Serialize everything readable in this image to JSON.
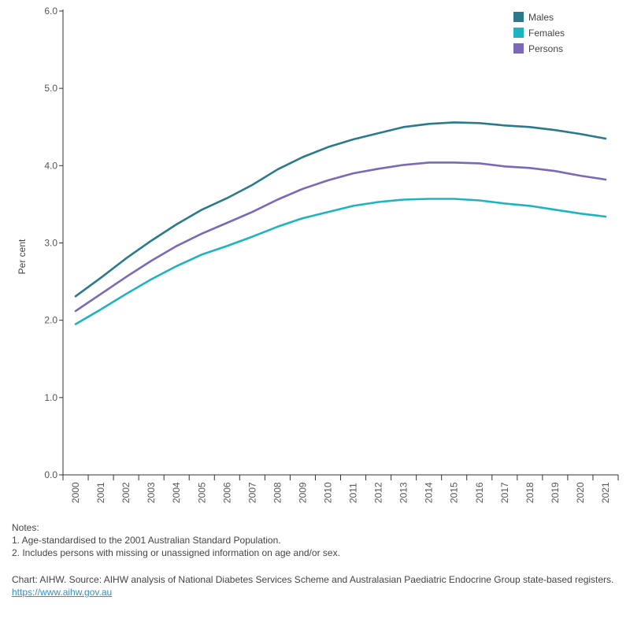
{
  "chart_data": {
    "type": "line",
    "ylabel": "Per cent",
    "xlabel": "",
    "ylim": [
      0,
      6
    ],
    "yticks": [
      "0.0",
      "1.0",
      "2.0",
      "3.0",
      "4.0",
      "5.0",
      "6.0"
    ],
    "x": [
      "2000",
      "2001",
      "2002",
      "2003",
      "2004",
      "2005",
      "2006",
      "2007",
      "2008",
      "2009",
      "2010",
      "2011",
      "2012",
      "2013",
      "2014",
      "2015",
      "2016",
      "2017",
      "2018",
      "2019",
      "2020",
      "2021"
    ],
    "series": [
      {
        "name": "Males",
        "color": "#2a7a8c",
        "values": [
          2.31,
          2.55,
          2.8,
          3.03,
          3.24,
          3.43,
          3.58,
          3.75,
          3.95,
          4.11,
          4.24,
          4.34,
          4.42,
          4.5,
          4.54,
          4.56,
          4.55,
          4.52,
          4.5,
          4.46,
          4.41,
          4.35
        ]
      },
      {
        "name": "Females",
        "color": "#1eb3c1",
        "values": [
          1.95,
          2.14,
          2.34,
          2.53,
          2.7,
          2.85,
          2.96,
          3.08,
          3.21,
          3.32,
          3.4,
          3.48,
          3.53,
          3.56,
          3.57,
          3.57,
          3.55,
          3.51,
          3.48,
          3.43,
          3.38,
          3.34
        ]
      },
      {
        "name": "Persons",
        "color": "#7b68b8",
        "values": [
          2.12,
          2.34,
          2.56,
          2.77,
          2.96,
          3.12,
          3.26,
          3.4,
          3.56,
          3.7,
          3.81,
          3.9,
          3.96,
          4.01,
          4.04,
          4.04,
          4.03,
          3.99,
          3.97,
          3.93,
          3.87,
          3.82
        ]
      }
    ],
    "legend_position": "top-right",
    "grid": false
  },
  "notes": {
    "heading": "Notes:",
    "items": [
      "1. Age-standardised to the 2001 Australian Standard Population.",
      "2. Includes persons with missing or unassigned information on age and/or sex."
    ]
  },
  "source": {
    "text": "Chart: AIHW. Source: AIHW analysis of National Diabetes Services Scheme and Australasian Paediatric Endocrine Group state-based registers.",
    "link_text": "https://www.aihw.gov.au"
  }
}
